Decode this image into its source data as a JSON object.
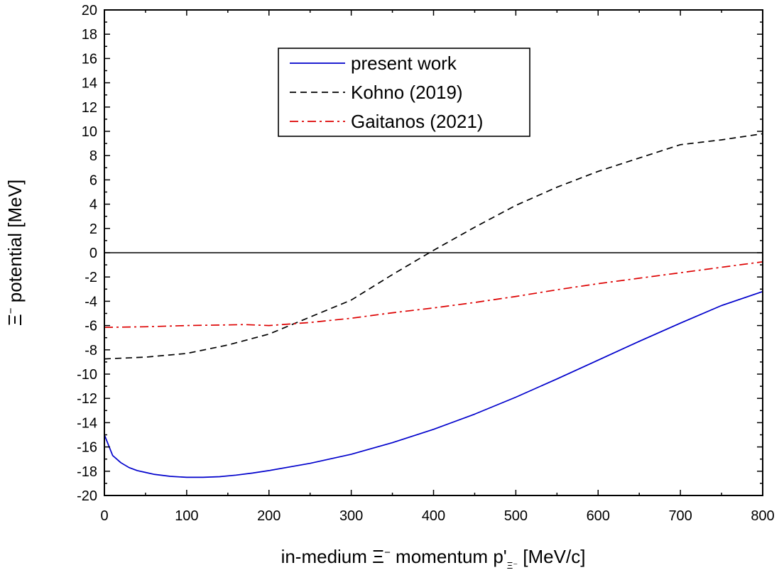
{
  "chart_data": {
    "type": "line",
    "title": "",
    "xlabel": "in-medium Ξ⁻ momentum p'Ξ⁻ [MeV/c]",
    "xlabel_parts": {
      "pre": "in-medium Ξ",
      "sup": "−",
      "mid": " momentum p'",
      "sub": "Ξ⁻",
      "post": " [MeV/c]"
    },
    "ylabel": "Ξ⁻ potential [MeV]",
    "ylabel_parts": {
      "pre": "Ξ",
      "sup": "−",
      "post": " potential [MeV]"
    },
    "xlim": [
      0,
      800
    ],
    "ylim": [
      -20,
      20
    ],
    "x_ticks": [
      0,
      100,
      200,
      300,
      400,
      500,
      600,
      700,
      800
    ],
    "y_ticks": [
      -20,
      -18,
      -16,
      -14,
      -12,
      -10,
      -8,
      -6,
      -4,
      -2,
      0,
      2,
      4,
      6,
      8,
      10,
      12,
      14,
      16,
      18,
      20
    ],
    "grid": false,
    "legend_position": "top-center",
    "zero_line": true,
    "series": [
      {
        "name": "present work",
        "color": "#0000cc",
        "dash": "solid",
        "x": [
          0,
          10,
          20,
          30,
          40,
          50,
          60,
          80,
          100,
          120,
          140,
          160,
          180,
          200,
          250,
          300,
          350,
          400,
          450,
          500,
          550,
          600,
          650,
          700,
          750,
          800
        ],
        "y": [
          -15.0,
          -16.7,
          -17.3,
          -17.7,
          -17.95,
          -18.1,
          -18.25,
          -18.42,
          -18.5,
          -18.5,
          -18.45,
          -18.32,
          -18.15,
          -17.95,
          -17.35,
          -16.6,
          -15.65,
          -14.55,
          -13.3,
          -11.9,
          -10.4,
          -8.85,
          -7.3,
          -5.8,
          -4.35,
          -3.2
        ]
      },
      {
        "name": "Kohno (2019)",
        "color": "#000000",
        "dash": "dashed",
        "x": [
          0,
          50,
          100,
          150,
          200,
          250,
          300,
          350,
          400,
          450,
          500,
          550,
          600,
          650,
          700,
          750,
          800
        ],
        "y": [
          -8.75,
          -8.6,
          -8.3,
          -7.6,
          -6.7,
          -5.3,
          -3.9,
          -1.8,
          0.2,
          2.1,
          3.9,
          5.4,
          6.7,
          7.8,
          8.9,
          9.3,
          9.8
        ]
      },
      {
        "name": "Gaitanos (2021)",
        "color": "#dd0000",
        "dash": "dashdot",
        "x": [
          0,
          50,
          100,
          150,
          170,
          200,
          250,
          300,
          350,
          400,
          450,
          500,
          550,
          600,
          650,
          700,
          750,
          800
        ],
        "y": [
          -6.15,
          -6.1,
          -6.0,
          -5.95,
          -5.92,
          -6.0,
          -5.75,
          -5.4,
          -4.95,
          -4.55,
          -4.1,
          -3.6,
          -3.05,
          -2.55,
          -2.1,
          -1.65,
          -1.2,
          -0.75
        ]
      }
    ]
  }
}
